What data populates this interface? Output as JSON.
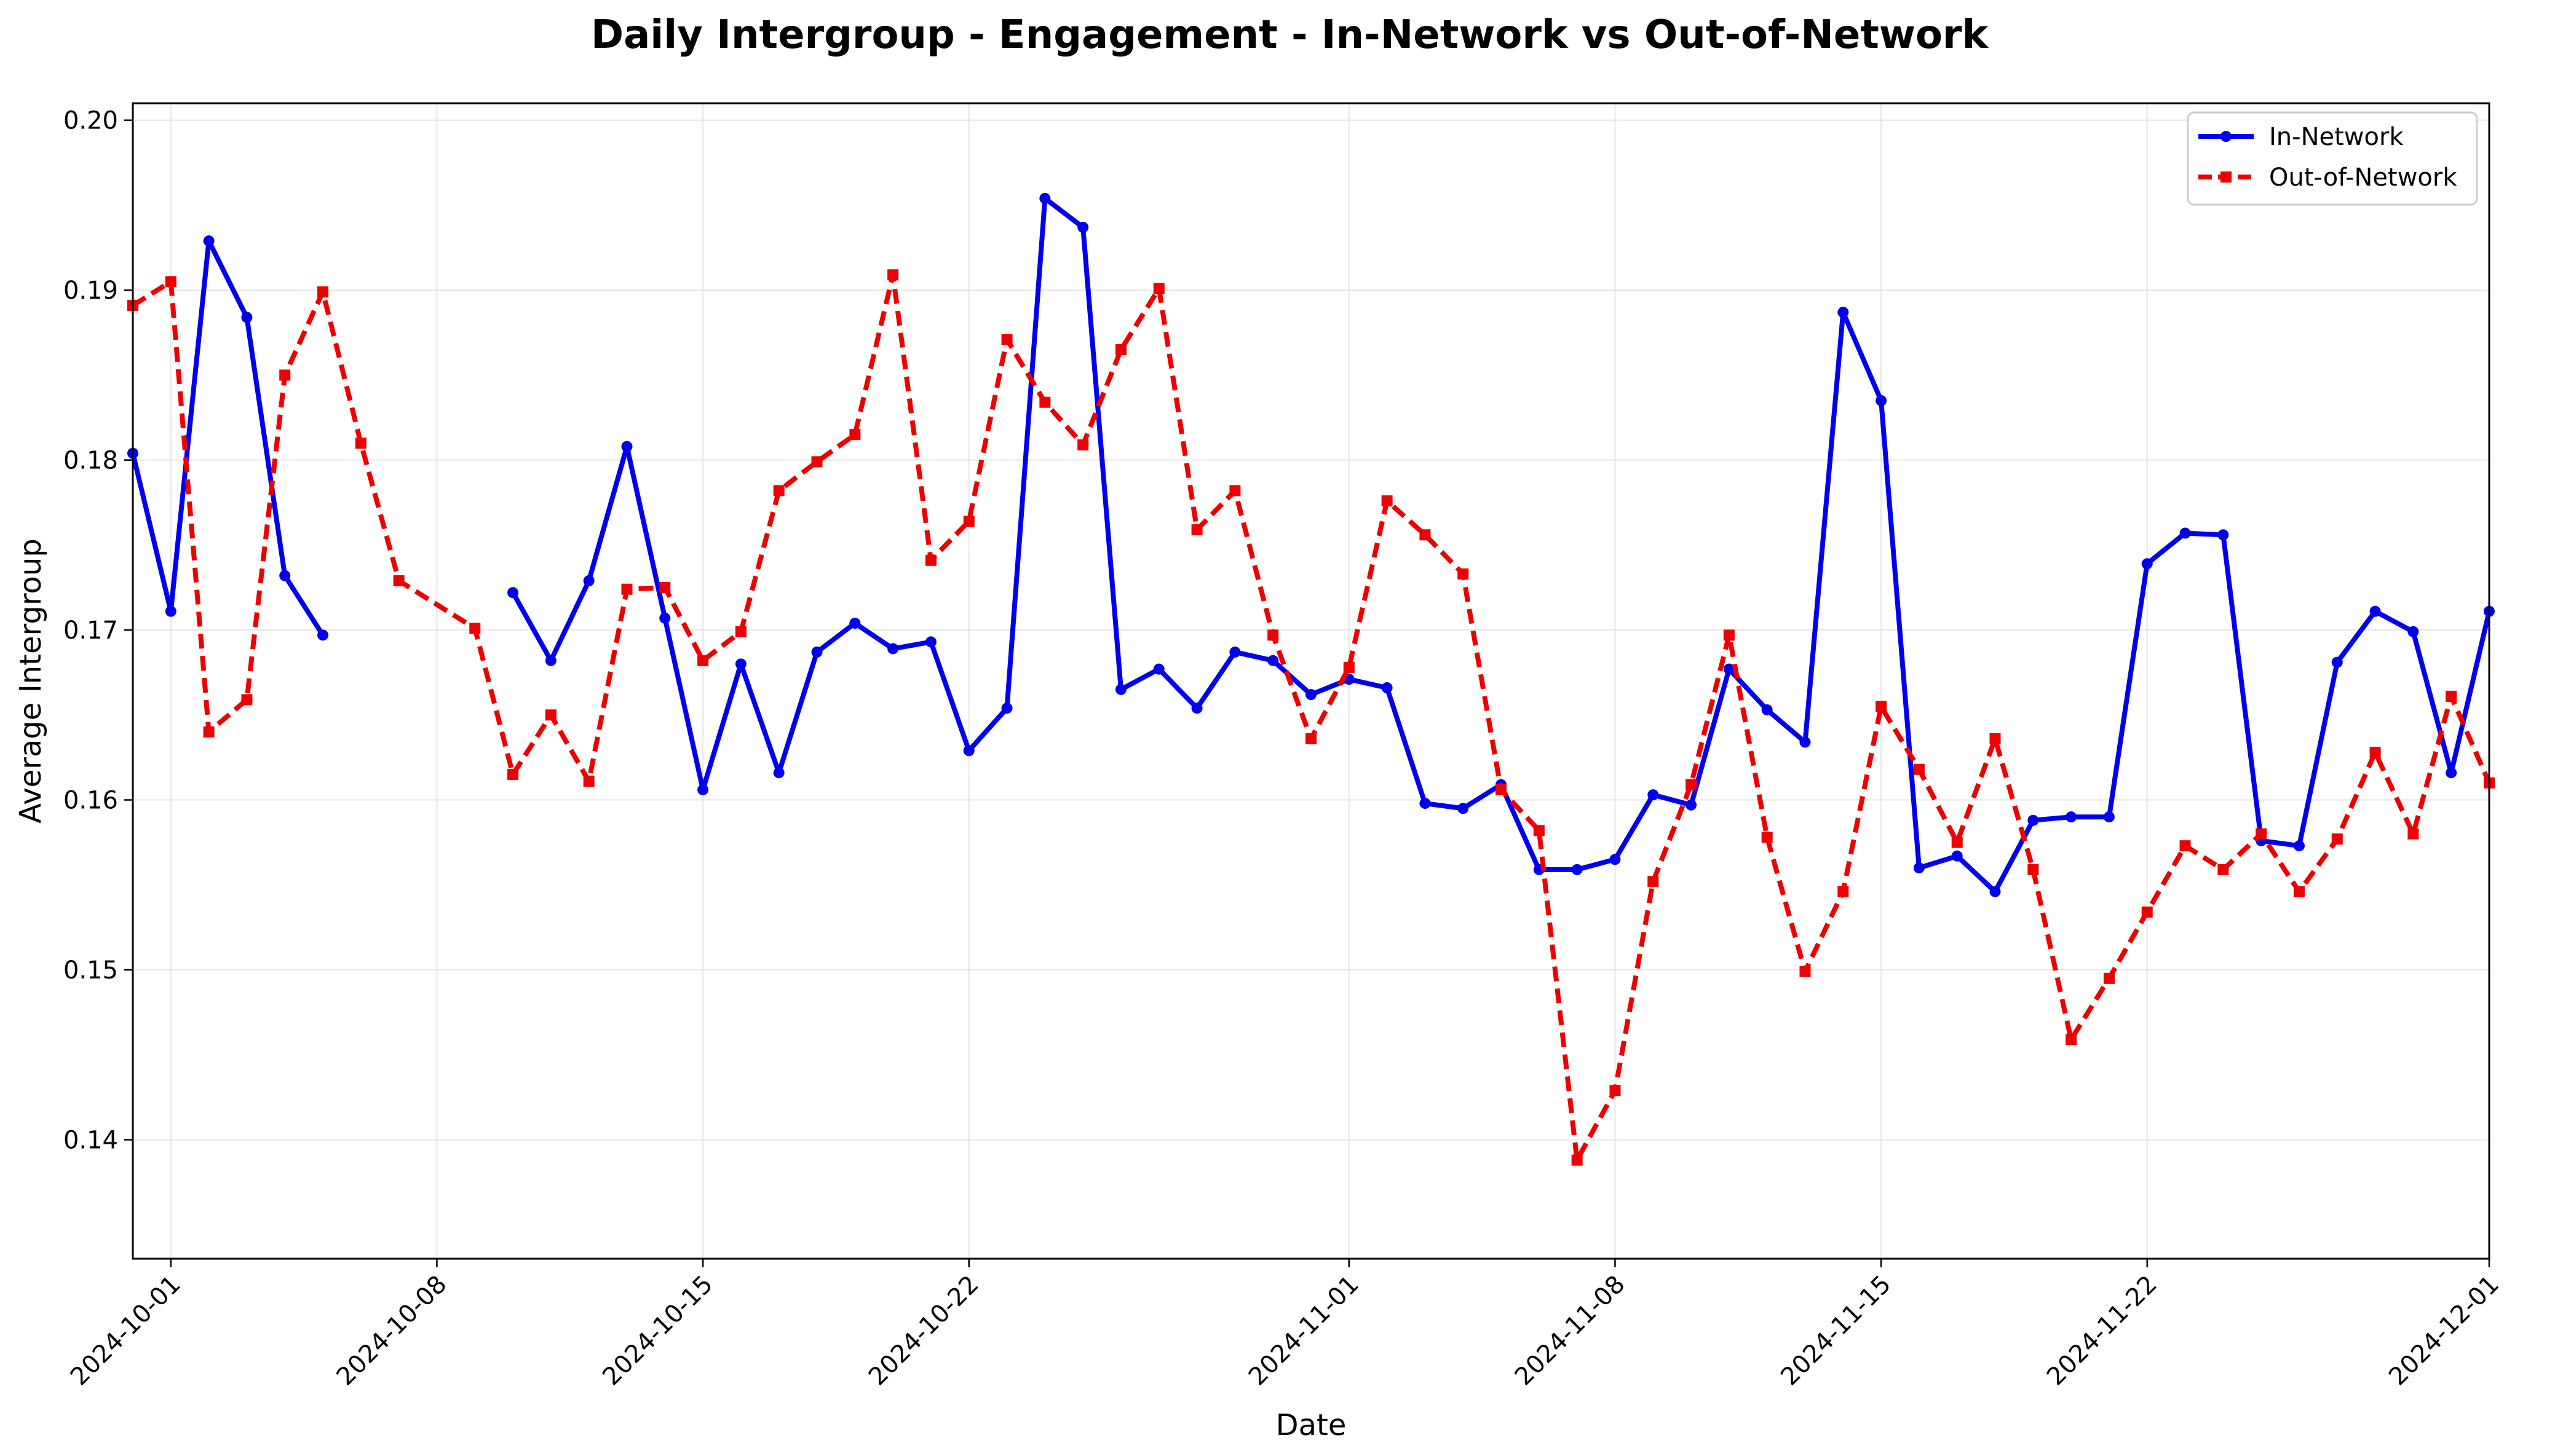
{
  "chart_data": {
    "type": "line",
    "title": "Daily Intergroup - Engagement - In-Network vs Out-of-Network",
    "xlabel": "Date",
    "ylabel": "Average Intergroup",
    "x_start": "2024-09-30",
    "x_end": "2024-12-01",
    "ylim": [
      0.133,
      0.201
    ],
    "x_ticks": [
      "2024-10-01",
      "2024-10-08",
      "2024-10-15",
      "2024-10-22",
      "2024-11-01",
      "2024-11-08",
      "2024-11-15",
      "2024-11-22",
      "2024-12-01"
    ],
    "y_ticks": [
      0.14,
      0.15,
      0.16,
      0.17,
      0.18,
      0.19,
      0.2
    ],
    "y_tick_labels": [
      "0.14",
      "0.15",
      "0.16",
      "0.17",
      "0.18",
      "0.19",
      "0.20"
    ],
    "grid": true,
    "legend_position": "top-right",
    "series": [
      {
        "name": "In-Network",
        "color": "#0000ee",
        "style": "solid",
        "marker": "circle",
        "points": [
          [
            "2024-09-30",
            0.1804
          ],
          [
            "2024-10-01",
            0.1711
          ],
          [
            "2024-10-02",
            0.1929
          ],
          [
            "2024-10-03",
            0.1884
          ],
          [
            "2024-10-04",
            0.1732
          ],
          [
            "2024-10-05",
            0.1697
          ],
          [
            "2024-10-10",
            0.1722
          ],
          [
            "2024-10-11",
            0.1682
          ],
          [
            "2024-10-12",
            0.1729
          ],
          [
            "2024-10-13",
            0.1808
          ],
          [
            "2024-10-14",
            0.1707
          ],
          [
            "2024-10-15",
            0.1606
          ],
          [
            "2024-10-16",
            0.168
          ],
          [
            "2024-10-17",
            0.1616
          ],
          [
            "2024-10-18",
            0.1687
          ],
          [
            "2024-10-19",
            0.1704
          ],
          [
            "2024-10-20",
            0.1689
          ],
          [
            "2024-10-21",
            0.1693
          ],
          [
            "2024-10-22",
            0.1629
          ],
          [
            "2024-10-23",
            0.1654
          ],
          [
            "2024-10-24",
            0.1954
          ],
          [
            "2024-10-25",
            0.1937
          ],
          [
            "2024-10-26",
            0.1665
          ],
          [
            "2024-10-27",
            0.1677
          ],
          [
            "2024-10-28",
            0.1654
          ],
          [
            "2024-10-29",
            0.1687
          ],
          [
            "2024-10-30",
            0.1682
          ],
          [
            "2024-10-31",
            0.1662
          ],
          [
            "2024-11-01",
            0.1671
          ],
          [
            "2024-11-02",
            0.1666
          ],
          [
            "2024-11-03",
            0.1598
          ],
          [
            "2024-11-04",
            0.1595
          ],
          [
            "2024-11-05",
            0.1609
          ],
          [
            "2024-11-06",
            0.1559
          ],
          [
            "2024-11-07",
            0.1559
          ],
          [
            "2024-11-08",
            0.1565
          ],
          [
            "2024-11-09",
            0.1603
          ],
          [
            "2024-11-10",
            0.1597
          ],
          [
            "2024-11-11",
            0.1677
          ],
          [
            "2024-11-12",
            0.1653
          ],
          [
            "2024-11-13",
            0.1634
          ],
          [
            "2024-11-14",
            0.1887
          ],
          [
            "2024-11-15",
            0.1835
          ],
          [
            "2024-11-16",
            0.156
          ],
          [
            "2024-11-17",
            0.1567
          ],
          [
            "2024-11-18",
            0.1546
          ],
          [
            "2024-11-19",
            0.1588
          ],
          [
            "2024-11-20",
            0.159
          ],
          [
            "2024-11-21",
            0.159
          ],
          [
            "2024-11-22",
            0.1739
          ],
          [
            "2024-11-23",
            0.1757
          ],
          [
            "2024-11-24",
            0.1756
          ],
          [
            "2024-11-25",
            0.1576
          ],
          [
            "2024-11-26",
            0.1573
          ],
          [
            "2024-11-27",
            0.1681
          ],
          [
            "2024-11-28",
            0.1711
          ],
          [
            "2024-11-29",
            0.1699
          ],
          [
            "2024-11-30",
            0.1616
          ],
          [
            "2024-12-01",
            0.1711
          ]
        ]
      },
      {
        "name": "Out-of-Network",
        "color": "#ee0000",
        "style": "dashed",
        "marker": "square",
        "points": [
          [
            "2024-09-30",
            0.1891
          ],
          [
            "2024-10-01",
            0.1905
          ],
          [
            "2024-10-02",
            0.164
          ],
          [
            "2024-10-03",
            0.1659
          ],
          [
            "2024-10-04",
            0.185
          ],
          [
            "2024-10-05",
            0.1899
          ],
          [
            "2024-10-06",
            0.181
          ],
          [
            "2024-10-07",
            0.1729
          ],
          [
            "2024-10-09",
            0.1701
          ],
          [
            "2024-10-10",
            0.1615
          ],
          [
            "2024-10-11",
            0.165
          ],
          [
            "2024-10-12",
            0.1611
          ],
          [
            "2024-10-13",
            0.1724
          ],
          [
            "2024-10-14",
            0.1725
          ],
          [
            "2024-10-15",
            0.1682
          ],
          [
            "2024-10-16",
            0.1699
          ],
          [
            "2024-10-17",
            0.1782
          ],
          [
            "2024-10-18",
            0.1799
          ],
          [
            "2024-10-19",
            0.1815
          ],
          [
            "2024-10-20",
            0.1909
          ],
          [
            "2024-10-21",
            0.1741
          ],
          [
            "2024-10-22",
            0.1764
          ],
          [
            "2024-10-23",
            0.1871
          ],
          [
            "2024-10-24",
            0.1834
          ],
          [
            "2024-10-25",
            0.1809
          ],
          [
            "2024-10-26",
            0.1865
          ],
          [
            "2024-10-27",
            0.1901
          ],
          [
            "2024-10-28",
            0.1759
          ],
          [
            "2024-10-29",
            0.1782
          ],
          [
            "2024-10-30",
            0.1697
          ],
          [
            "2024-10-31",
            0.1636
          ],
          [
            "2024-11-01",
            0.1678
          ],
          [
            "2024-11-02",
            0.1776
          ],
          [
            "2024-11-03",
            0.1756
          ],
          [
            "2024-11-04",
            0.1733
          ],
          [
            "2024-11-05",
            0.1606
          ],
          [
            "2024-11-06",
            0.1582
          ],
          [
            "2024-11-07",
            0.1388
          ],
          [
            "2024-11-08",
            0.1429
          ],
          [
            "2024-11-09",
            0.1552
          ],
          [
            "2024-11-10",
            0.1609
          ],
          [
            "2024-11-11",
            0.1697
          ],
          [
            "2024-11-12",
            0.1578
          ],
          [
            "2024-11-13",
            0.1499
          ],
          [
            "2024-11-14",
            0.1546
          ],
          [
            "2024-11-15",
            0.1655
          ],
          [
            "2024-11-16",
            0.1618
          ],
          [
            "2024-11-17",
            0.1575
          ],
          [
            "2024-11-18",
            0.1636
          ],
          [
            "2024-11-19",
            0.1559
          ],
          [
            "2024-11-20",
            0.1459
          ],
          [
            "2024-11-21",
            0.1495
          ],
          [
            "2024-11-22",
            0.1534
          ],
          [
            "2024-11-23",
            0.1573
          ],
          [
            "2024-11-24",
            0.1559
          ],
          [
            "2024-11-25",
            0.158
          ],
          [
            "2024-11-26",
            0.1546
          ],
          [
            "2024-11-27",
            0.1577
          ],
          [
            "2024-11-28",
            0.1628
          ],
          [
            "2024-11-29",
            0.158
          ],
          [
            "2024-11-30",
            0.1661
          ],
          [
            "2024-12-01",
            0.161
          ]
        ]
      }
    ]
  }
}
